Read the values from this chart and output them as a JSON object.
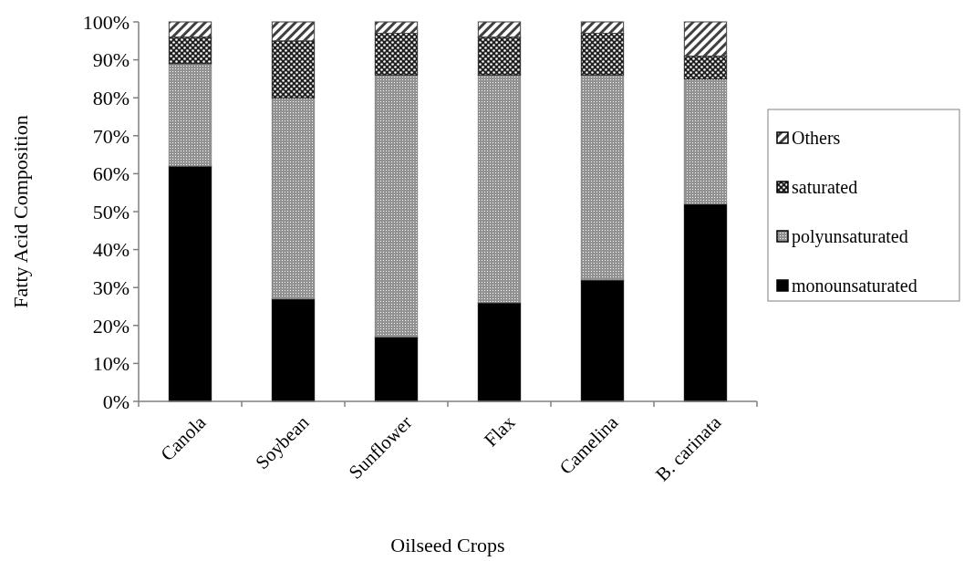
{
  "chart_data": {
    "type": "bar",
    "stacked": true,
    "xlabel": "Oilseed Crops",
    "ylabel": "Fatty Acid Composition",
    "categories": [
      "Canola",
      "Soybean",
      "Sunflower",
      "Flax",
      "Camelina",
      "B. carinata"
    ],
    "series": [
      {
        "name": "monounsaturated",
        "color": "#000000",
        "values": [
          62,
          27,
          17,
          26,
          32,
          52
        ]
      },
      {
        "name": "polyunsaturated",
        "color": "#7f7f7f",
        "values": [
          27,
          53,
          69,
          60,
          54,
          33
        ]
      },
      {
        "name": "saturated",
        "color": "#202020",
        "values": [
          7,
          15,
          11,
          10,
          11,
          6
        ]
      },
      {
        "name": "Others",
        "color": "#404040",
        "values": [
          4,
          5,
          3,
          4,
          3,
          9
        ]
      }
    ],
    "ylim": [
      0,
      100
    ],
    "yticks": [
      {
        "value": 0,
        "label": "0%"
      },
      {
        "value": 10,
        "label": "10%"
      },
      {
        "value": 20,
        "label": "20%"
      },
      {
        "value": 30,
        "label": "30%"
      },
      {
        "value": 40,
        "label": "40%"
      },
      {
        "value": 50,
        "label": "50%"
      },
      {
        "value": 60,
        "label": "60%"
      },
      {
        "value": 70,
        "label": "70%"
      },
      {
        "value": 80,
        "label": "80%"
      },
      {
        "value": 90,
        "label": "90%"
      },
      {
        "value": 100,
        "label": "100%"
      }
    ],
    "legend": "right"
  }
}
